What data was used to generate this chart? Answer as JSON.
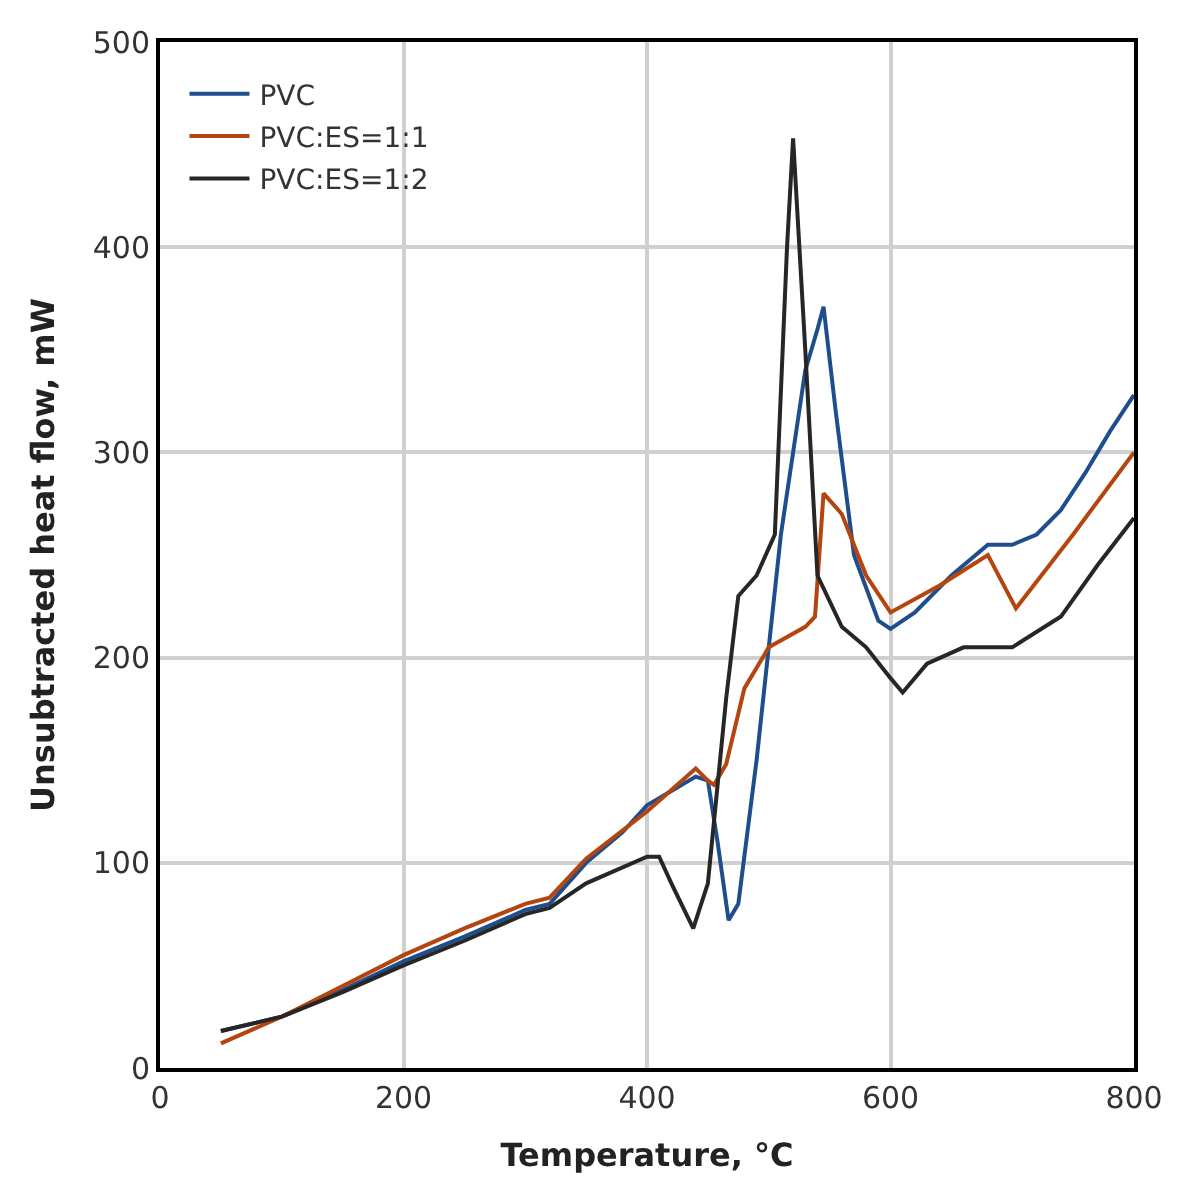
{
  "chart_data": {
    "type": "line",
    "xlabel": "Temperature, °C",
    "ylabel": "Unsubtracted heat flow, mW",
    "xlim": [
      0,
      800
    ],
    "ylim": [
      0,
      500
    ],
    "xticks": [
      0,
      200,
      400,
      600,
      800
    ],
    "yticks": [
      0,
      100,
      200,
      300,
      400,
      500
    ],
    "grid": true,
    "legend": "top left",
    "marker": "none",
    "line_style": "solid",
    "series": [
      {
        "name": "PVC",
        "color": "#1f4e8c",
        "x": [
          50,
          100,
          150,
          200,
          250,
          300,
          320,
          350,
          380,
          400,
          420,
          440,
          450,
          458,
          467,
          475,
          490,
          510,
          530,
          540,
          545,
          555,
          570,
          590,
          600,
          620,
          650,
          680,
          700,
          720,
          740,
          760,
          780,
          800
        ],
        "values": [
          18,
          25,
          38,
          52,
          64,
          77,
          80,
          100,
          115,
          128,
          135,
          142,
          140,
          110,
          72,
          80,
          150,
          260,
          340,
          360,
          371,
          320,
          250,
          218,
          214,
          222,
          240,
          255,
          255,
          260,
          272,
          290,
          310,
          328
        ]
      },
      {
        "name": "PVC:ES=1:1",
        "color": "#b5450f",
        "x": [
          50,
          100,
          150,
          200,
          250,
          300,
          320,
          350,
          400,
          440,
          450,
          455,
          465,
          480,
          500,
          530,
          538,
          545,
          560,
          580,
          600,
          640,
          680,
          703,
          750,
          800
        ],
        "values": [
          12,
          25,
          40,
          55,
          68,
          80,
          83,
          102,
          125,
          146,
          140,
          138,
          148,
          185,
          205,
          215,
          220,
          280,
          270,
          240,
          222,
          235,
          250,
          224,
          260,
          300
        ]
      },
      {
        "name": "PVC:ES=1:2",
        "color": "#262626",
        "x": [
          50,
          100,
          150,
          200,
          250,
          300,
          320,
          350,
          400,
          410,
          420,
          438,
          450,
          465,
          475,
          490,
          505,
          515,
          520,
          530,
          540,
          560,
          580,
          600,
          610,
          630,
          660,
          700,
          740,
          770,
          800
        ],
        "values": [
          18,
          25,
          37,
          50,
          62,
          75,
          78,
          90,
          103,
          103,
          90,
          68,
          90,
          180,
          230,
          240,
          260,
          400,
          453,
          350,
          240,
          215,
          205,
          190,
          183,
          197,
          205,
          205,
          220,
          245,
          268
        ]
      }
    ]
  }
}
